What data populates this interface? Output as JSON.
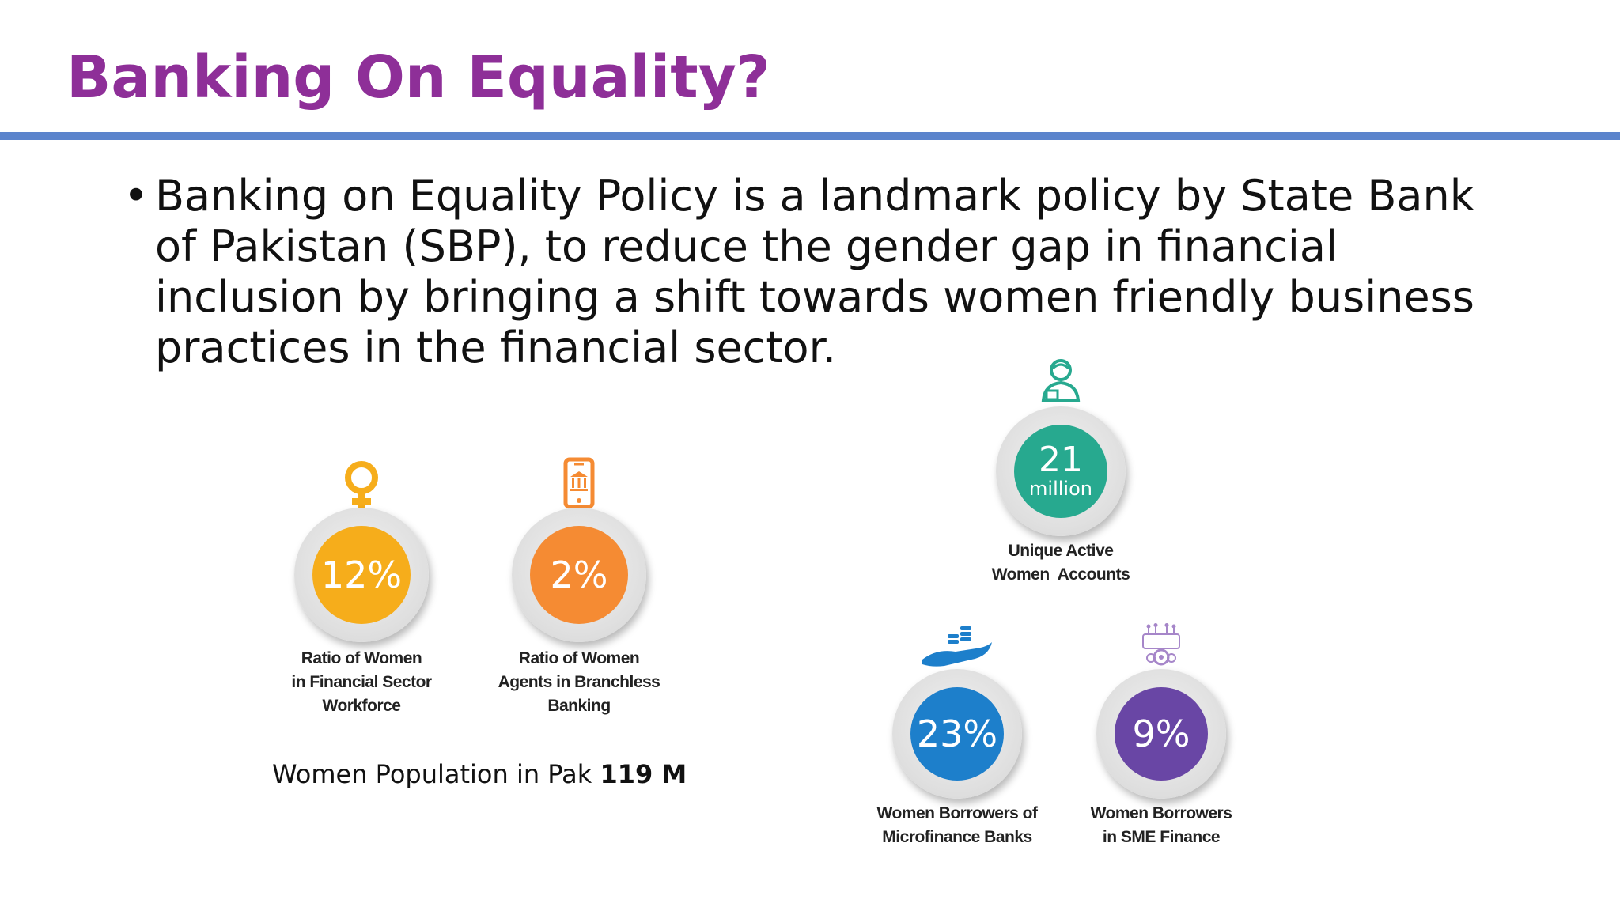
{
  "slide": {
    "title": "Banking On Equality?",
    "bullet": "Banking on Equality Policy is a landmark policy by State Bank of Pakistan (SBP), to reduce the gender gap in financial inclusion by bringing a shift towards women friendly business practices in the financial sector."
  },
  "stats": [
    {
      "value": "12%",
      "sub": "",
      "caption": [
        "Ratio of Women",
        "in Financial Sector",
        "Workforce"
      ],
      "color": "#f6ad1b",
      "icon": "female-symbol-icon"
    },
    {
      "value": "2%",
      "sub": "",
      "caption": [
        "Ratio of Women",
        "Agents in Branchless",
        "Banking"
      ],
      "color": "#f58b33",
      "icon": "mobile-bank-icon"
    },
    {
      "value": "21",
      "sub": "million",
      "caption": [
        "Unique Active",
        "Women  Accounts"
      ],
      "color": "#27a98f",
      "icon": "woman-account-icon"
    },
    {
      "value": "23%",
      "sub": "",
      "caption": [
        "Women Borrowers of",
        "Microfinance Banks"
      ],
      "color": "#1d7fcb",
      "icon": "hand-coins-icon"
    },
    {
      "value": "9%",
      "sub": "",
      "caption": [
        "Women Borrowers",
        "in SME Finance"
      ],
      "color": "#6946a5",
      "icon": "sme-gear-icon"
    }
  ],
  "population": {
    "label": "Women Population in Pak",
    "value": "119 M"
  }
}
